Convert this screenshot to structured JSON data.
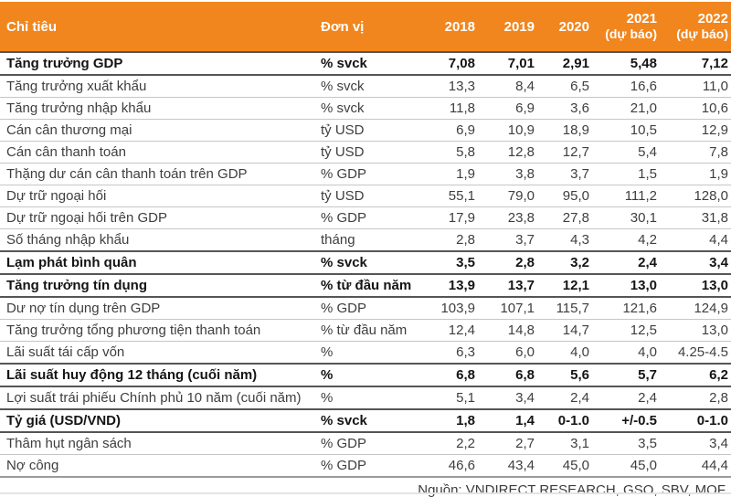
{
  "colors": {
    "header_bg": "#F1861E",
    "header_text": "#FFFFFF",
    "row_separator": "#C6C6C6",
    "bold_separator": "#555555",
    "body_text": "#3E3E3E",
    "bold_text": "#141414",
    "bottom_rule": "#E4E4E4"
  },
  "header": {
    "indicator": "Chỉ tiêu",
    "unit": "Đơn vị",
    "years": [
      {
        "year": "2018",
        "note": ""
      },
      {
        "year": "2019",
        "note": ""
      },
      {
        "year": "2020",
        "note": ""
      },
      {
        "year": "2021",
        "note": "(dự báo)"
      },
      {
        "year": "2022",
        "note": "(dự báo)"
      }
    ]
  },
  "footer": {
    "source": "Nguồn: VNDIRECT RESEARCH, GSO, SBV, MOF"
  },
  "chart_data": {
    "type": "table",
    "title": "",
    "columns": [
      "Chỉ tiêu",
      "Đơn vị",
      "2018",
      "2019",
      "2020",
      "2021 (dự báo)",
      "2022 (dự báo)"
    ],
    "rows": [
      {
        "label": "Tăng trưởng GDP",
        "unit": "% svck",
        "values": [
          "7,08",
          "7,01",
          "2,91",
          "5,48",
          "7,12"
        ],
        "bold": true
      },
      {
        "label": "Tăng trưởng xuất khẩu",
        "unit": "% svck",
        "values": [
          "13,3",
          "8,4",
          "6,5",
          "16,6",
          "11,0"
        ],
        "bold": false
      },
      {
        "label": "Tăng trưởng nhập khẩu",
        "unit": "% svck",
        "values": [
          "11,8",
          "6,9",
          "3,6",
          "21,0",
          "10,6"
        ],
        "bold": false
      },
      {
        "label": "Cán cân thương mại",
        "unit": "tỷ USD",
        "values": [
          "6,9",
          "10,9",
          "18,9",
          "10,5",
          "12,9"
        ],
        "bold": false
      },
      {
        "label": "Cán cân thanh toán",
        "unit": "tỷ USD",
        "values": [
          "5,8",
          "12,8",
          "12,7",
          "5,4",
          "7,8"
        ],
        "bold": false
      },
      {
        "label": "Thặng dư cán cân thanh toán trên GDP",
        "unit": "% GDP",
        "values": [
          "1,9",
          "3,8",
          "3,7",
          "1,5",
          "1,9"
        ],
        "bold": false
      },
      {
        "label": "Dự trữ ngoại hối",
        "unit": "tỷ USD",
        "values": [
          "55,1",
          "79,0",
          "95,0",
          "111,2",
          "128,0"
        ],
        "bold": false
      },
      {
        "label": "Dự trữ ngoại hối trên GDP",
        "unit": "% GDP",
        "values": [
          "17,9",
          "23,8",
          "27,8",
          "30,1",
          "31,8"
        ],
        "bold": false
      },
      {
        "label": "Số tháng nhập khẩu",
        "unit": "tháng",
        "values": [
          "2,8",
          "3,7",
          "4,3",
          "4,2",
          "4,4"
        ],
        "bold": false
      },
      {
        "label": "Lạm phát bình quân",
        "unit": "% svck",
        "values": [
          "3,5",
          "2,8",
          "3,2",
          "2,4",
          "3,4"
        ],
        "bold": true
      },
      {
        "label": "Tăng trưởng tín dụng",
        "unit": "% từ đầu năm",
        "values": [
          "13,9",
          "13,7",
          "12,1",
          "13,0",
          "13,0"
        ],
        "bold": true
      },
      {
        "label": "Dư nợ tín dụng trên GDP",
        "unit": "% GDP",
        "values": [
          "103,9",
          "107,1",
          "115,7",
          "121,6",
          "124,9"
        ],
        "bold": false
      },
      {
        "label": "Tăng trưởng tổng phương tiện thanh toán",
        "unit": "% từ đầu năm",
        "values": [
          "12,4",
          "14,8",
          "14,7",
          "12,5",
          "13,0"
        ],
        "bold": false
      },
      {
        "label": "Lãi suất tái cấp vốn",
        "unit": "%",
        "values": [
          "6,3",
          "6,0",
          "4,0",
          "4,0",
          "4.25-4.5"
        ],
        "bold": false
      },
      {
        "label": "Lãi suất huy động 12 tháng (cuối năm)",
        "unit": "%",
        "values": [
          "6,8",
          "6,8",
          "5,6",
          "5,7",
          "6,2"
        ],
        "bold": true
      },
      {
        "label": "Lợi suất trái phiếu Chính phủ 10 năm (cuối năm)",
        "unit": "%",
        "values": [
          "5,1",
          "3,4",
          "2,4",
          "2,4",
          "2,8"
        ],
        "bold": false
      },
      {
        "label": "Tỷ giá (USD/VND)",
        "unit": "% svck",
        "values": [
          "1,8",
          "1,4",
          "0-1.0",
          "+/-0.5",
          "0-1.0"
        ],
        "bold": true
      },
      {
        "label": "Thâm hụt ngân sách",
        "unit": "% GDP",
        "values": [
          "2,2",
          "2,7",
          "3,1",
          "3,5",
          "3,4"
        ],
        "bold": false
      },
      {
        "label": "Nợ công",
        "unit": "% GDP",
        "values": [
          "46,6",
          "43,4",
          "45,0",
          "45,0",
          "44,4"
        ],
        "bold": false
      }
    ],
    "source": "Nguồn: VNDIRECT RESEARCH, GSO, SBV, MOF"
  }
}
